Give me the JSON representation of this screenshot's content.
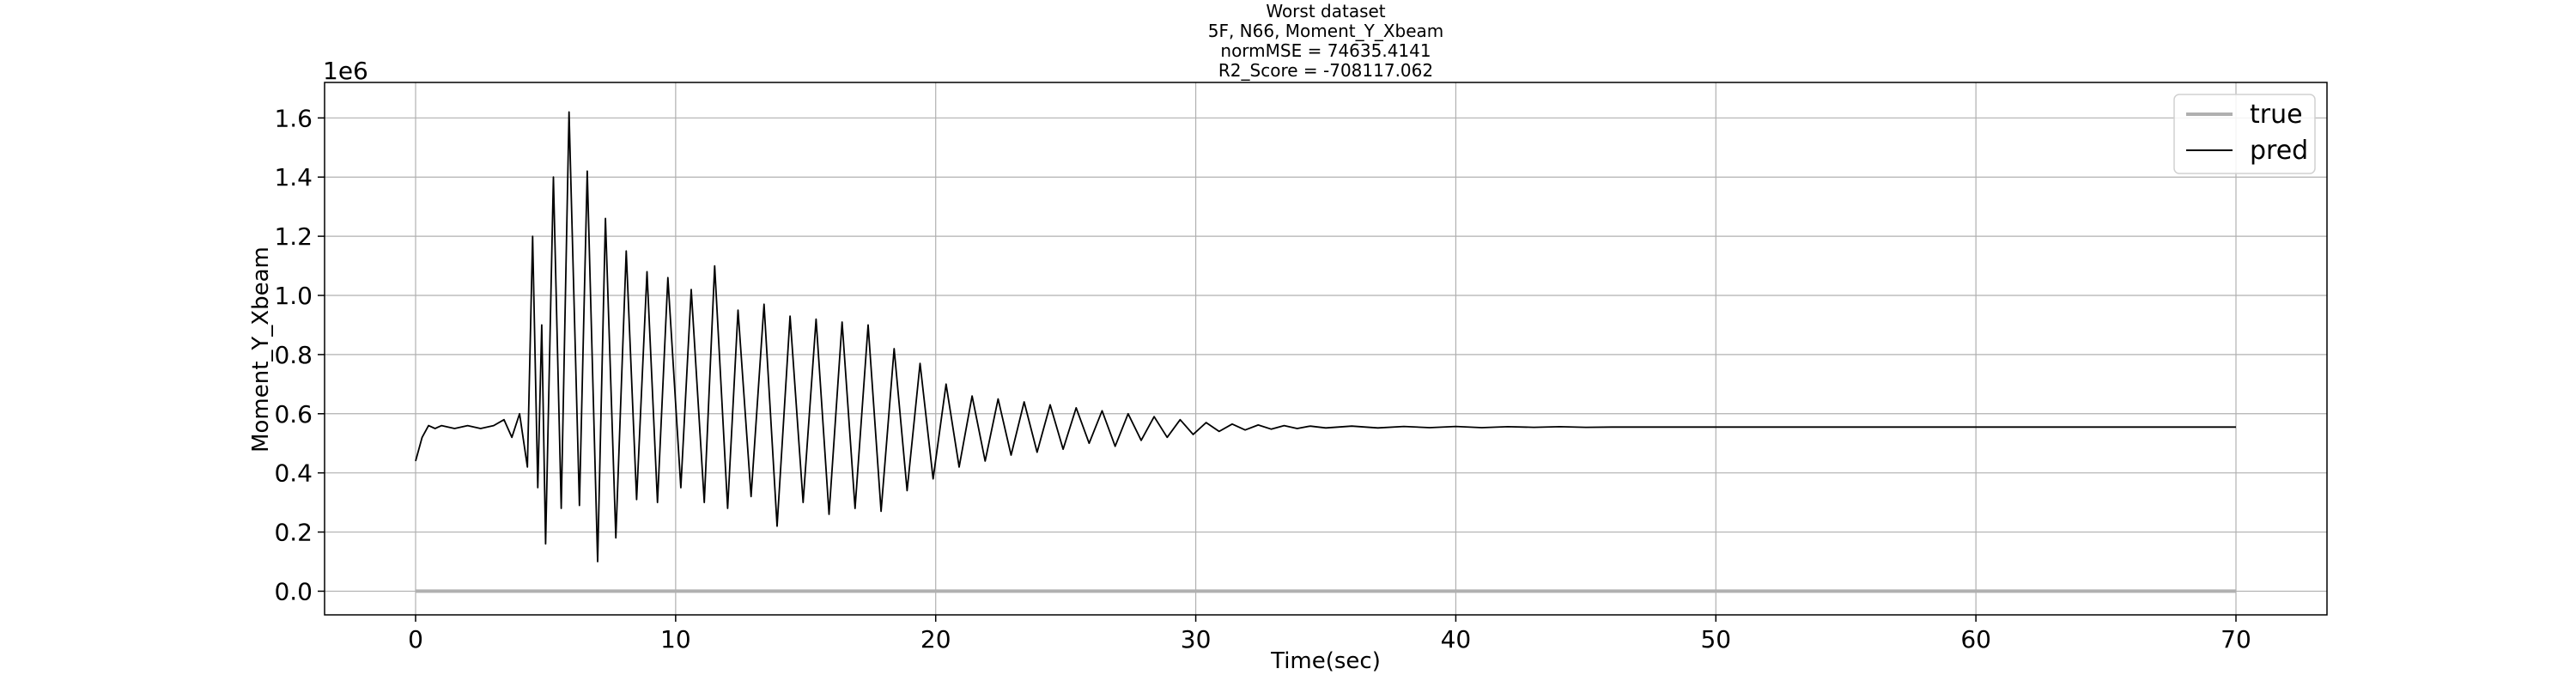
{
  "chart_data": {
    "type": "line",
    "title_lines": [
      "Worst dataset",
      "5F, N66, Moment_Y_Xbeam",
      "normMSE = 74635.4141",
      "R2_Score = -708117.062"
    ],
    "xlabel": "Time(sec)",
    "ylabel": "Moment_Y_Xbeam",
    "y_offset_label": "1e6",
    "xlim": [
      -3.5,
      73.5
    ],
    "ylim": [
      -0.08,
      1.72
    ],
    "x_ticks": [
      0,
      10,
      20,
      30,
      40,
      50,
      60,
      70
    ],
    "x_tick_labels": [
      "0",
      "10",
      "20",
      "30",
      "40",
      "50",
      "60",
      "70"
    ],
    "y_ticks": [
      0.0,
      0.2,
      0.4,
      0.6,
      0.8,
      1.0,
      1.2,
      1.4,
      1.6
    ],
    "y_tick_labels": [
      "0.0",
      "0.2",
      "0.4",
      "0.6",
      "0.8",
      "1.0",
      "1.2",
      "1.4",
      "1.6"
    ],
    "grid": true,
    "legend_position": "top-right",
    "series": [
      {
        "name": "true",
        "color": "#b0b0b0",
        "x": [
          0,
          10,
          20,
          30,
          40,
          50,
          60,
          70
        ],
        "values": [
          0.0,
          0.0,
          0.0,
          0.0,
          0.0,
          0.0,
          0.0,
          0.0
        ]
      },
      {
        "name": "pred",
        "color": "#000000",
        "x": [
          0.0,
          0.25,
          0.5,
          0.75,
          1.0,
          1.5,
          2.0,
          2.5,
          3.0,
          3.4,
          3.7,
          4.0,
          4.3,
          4.5,
          4.7,
          4.85,
          5.0,
          5.3,
          5.6,
          5.9,
          6.3,
          6.6,
          7.0,
          7.3,
          7.7,
          8.1,
          8.5,
          8.9,
          9.3,
          9.7,
          10.2,
          10.6,
          11.1,
          11.5,
          12.0,
          12.4,
          12.9,
          13.4,
          13.9,
          14.4,
          14.9,
          15.4,
          15.9,
          16.4,
          16.9,
          17.4,
          17.9,
          18.4,
          18.9,
          19.4,
          19.9,
          20.4,
          20.9,
          21.4,
          21.9,
          22.4,
          22.9,
          23.4,
          23.9,
          24.4,
          24.9,
          25.4,
          25.9,
          26.4,
          26.9,
          27.4,
          27.9,
          28.4,
          28.9,
          29.4,
          29.9,
          30.4,
          30.9,
          31.4,
          31.9,
          32.4,
          32.9,
          33.4,
          33.9,
          34.4,
          35.0,
          36.0,
          37.0,
          38.0,
          39.0,
          40.0,
          41.0,
          42.0,
          43.0,
          44.0,
          45.0,
          46.0,
          47.0,
          48.0,
          49.0,
          50.0,
          60.0,
          70.0
        ],
        "values": [
          0.44,
          0.52,
          0.56,
          0.55,
          0.56,
          0.55,
          0.56,
          0.55,
          0.56,
          0.58,
          0.52,
          0.6,
          0.42,
          1.2,
          0.35,
          0.9,
          0.16,
          1.4,
          0.28,
          1.62,
          0.29,
          1.42,
          0.1,
          1.26,
          0.18,
          1.15,
          0.31,
          1.08,
          0.3,
          1.06,
          0.35,
          1.02,
          0.3,
          1.1,
          0.28,
          0.95,
          0.32,
          0.97,
          0.22,
          0.93,
          0.3,
          0.92,
          0.26,
          0.91,
          0.28,
          0.9,
          0.27,
          0.82,
          0.34,
          0.77,
          0.38,
          0.7,
          0.42,
          0.66,
          0.44,
          0.65,
          0.46,
          0.64,
          0.47,
          0.63,
          0.48,
          0.62,
          0.5,
          0.61,
          0.49,
          0.6,
          0.51,
          0.59,
          0.52,
          0.58,
          0.53,
          0.57,
          0.54,
          0.565,
          0.545,
          0.562,
          0.548,
          0.56,
          0.55,
          0.558,
          0.552,
          0.558,
          0.552,
          0.557,
          0.553,
          0.557,
          0.553,
          0.556,
          0.554,
          0.556,
          0.554,
          0.555,
          0.555,
          0.555,
          0.555,
          0.555,
          0.555,
          0.555
        ]
      }
    ]
  }
}
